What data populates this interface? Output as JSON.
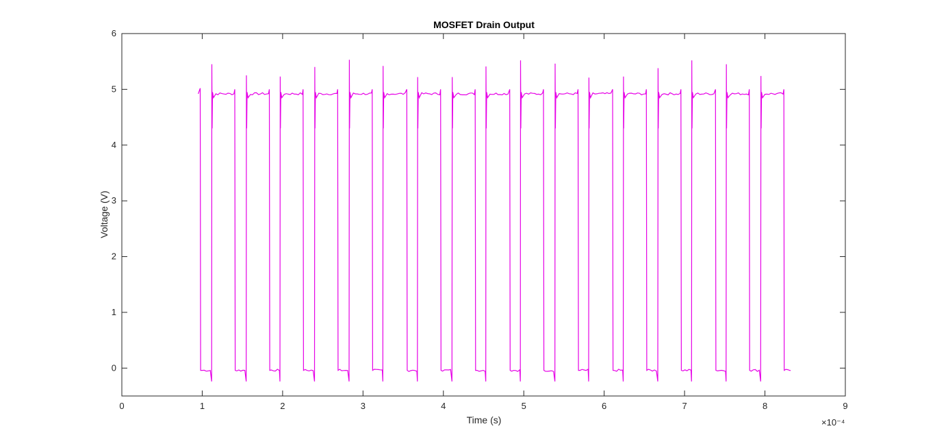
{
  "chart_data": {
    "type": "line",
    "title": "MOSFET Drain Output",
    "xlabel": "Time (s)",
    "ylabel": "Voltage (V)",
    "x_exponent_label": "×10⁻⁴",
    "x_multiplier": 0.0001,
    "xlim": [
      0,
      9
    ],
    "ylim": [
      -0.5,
      6
    ],
    "x_ticks": [
      "0",
      "1",
      "2",
      "3",
      "4",
      "5",
      "6",
      "7",
      "8",
      "9"
    ],
    "y_ticks": [
      "0",
      "1",
      "2",
      "3",
      "4",
      "5",
      "6"
    ],
    "grid": false,
    "line_color": "#e600e6",
    "signal": {
      "description_free": true,
      "high_level": 4.92,
      "low_level": -0.04,
      "start": 0.95,
      "end": 8.32,
      "fall_edges": [
        0.98,
        1.41,
        1.84,
        2.26,
        2.69,
        3.12,
        3.55,
        3.97,
        4.4,
        4.83,
        5.25,
        5.68,
        6.11,
        6.53,
        6.96,
        7.39,
        7.81,
        8.24
      ],
      "rise_edges": [
        1.12,
        1.55,
        1.97,
        2.4,
        2.83,
        3.25,
        3.68,
        4.11,
        4.53,
        4.96,
        5.39,
        5.81,
        6.24,
        6.67,
        7.09,
        7.52,
        7.95
      ],
      "rise_overshoot_peaks": [
        5.45,
        5.25,
        5.23,
        5.4,
        5.53,
        5.42,
        5.22,
        5.22,
        5.41,
        5.52,
        5.46,
        5.21,
        5.23,
        5.38,
        5.52,
        5.45,
        5.24
      ],
      "fall_overshoot_peaks": [
        5.02,
        5.0,
        5.0,
        5.0,
        5.0,
        5.0,
        5.0,
        5.0,
        5.0,
        5.0,
        5.0,
        5.0,
        5.0,
        5.0,
        5.0,
        5.0,
        5.0,
        5.0
      ],
      "low_undershoot": -0.24
    }
  }
}
